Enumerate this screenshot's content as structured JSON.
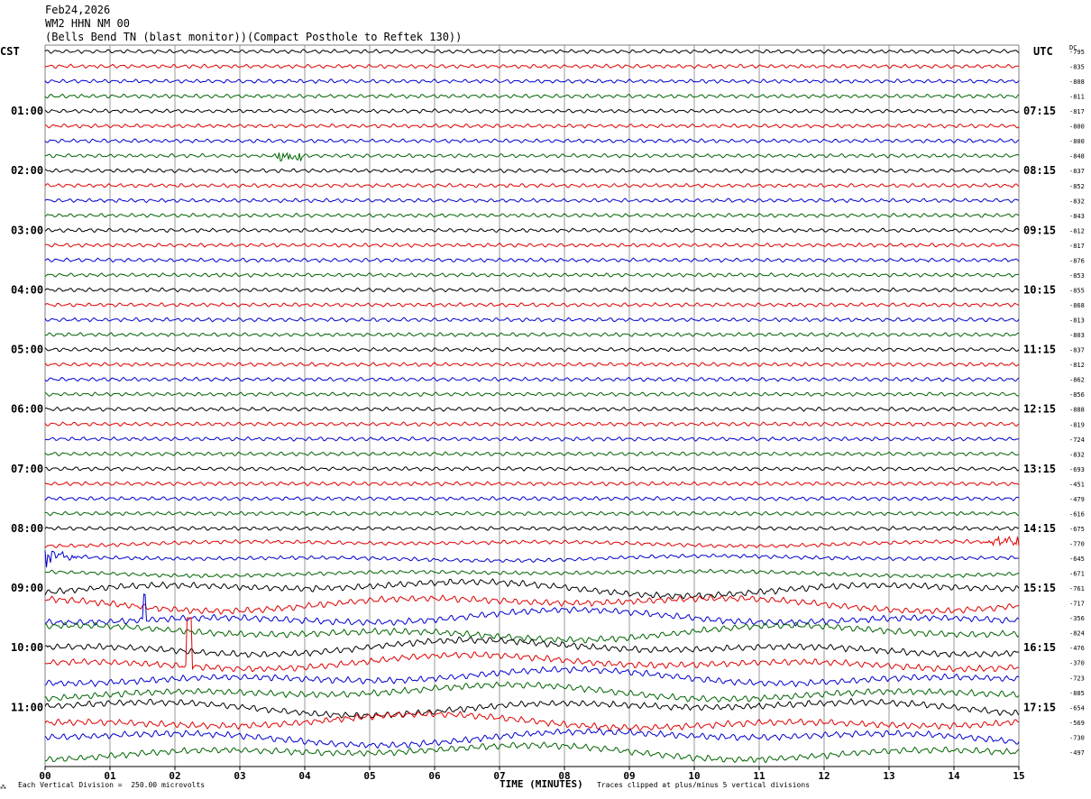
{
  "header": {
    "date": "Feb24,2026",
    "station": "WM2 HHN NM 00",
    "description": "(Bells Bend TN (blast monitor))(Compact Posthole to Reftek 130))"
  },
  "left_tz": "CST",
  "right_tz": "UTC",
  "dc_label": "DC",
  "footer": {
    "scale_note": "Each Vertical Division =  250.00 microvolts",
    "clip_note": "Traces clipped at plus/minus 5 vertical divisions",
    "logo_mark": "⁂"
  },
  "colors": {
    "black": "#000000",
    "red": "#e00000",
    "blue": "#0000d0",
    "green": "#006400",
    "grid": "#808080"
  },
  "chart_data": {
    "type": "line",
    "title": "",
    "xlabel": "TIME (MINUTES)",
    "ylabel": "",
    "xlim": [
      0,
      15
    ],
    "x_ticks": [
      "00",
      "01",
      "02",
      "03",
      "04",
      "05",
      "06",
      "07",
      "08",
      "09",
      "10",
      "11",
      "12",
      "13",
      "14",
      "15"
    ],
    "row_count": 48,
    "series_color_cycle": [
      "black",
      "red",
      "blue",
      "green"
    ],
    "left_hour_labels": [
      "01:00",
      "02:00",
      "03:00",
      "04:00",
      "05:00",
      "06:00",
      "07:00",
      "08:00",
      "09:00",
      "10:00",
      "11:00"
    ],
    "right_hour_labels": [
      "07:15",
      "08:15",
      "09:15",
      "10:15",
      "11:15",
      "12:15",
      "13:15",
      "14:15",
      "15:15",
      "16:15",
      "17:15"
    ],
    "dc_offsets": [
      "-795",
      "-835",
      "-808",
      "-811",
      "-817",
      "-800",
      "-800",
      "-848",
      "-837",
      "-852",
      "-832",
      "-843",
      "-812",
      "-817",
      "-876",
      "-853",
      "-855",
      "-868",
      "-813",
      "-803",
      "-837",
      "-812",
      "-862",
      "-856",
      "-888",
      "-819",
      "-724",
      "-832",
      "-693",
      "-451",
      "-479",
      "-616",
      "-675",
      "-770",
      "-645",
      "-671",
      "-761",
      "-717",
      "-356",
      "-824",
      "-476",
      "-370",
      "-723",
      "-885",
      "-654",
      "-569",
      "-730",
      "-497"
    ]
  }
}
